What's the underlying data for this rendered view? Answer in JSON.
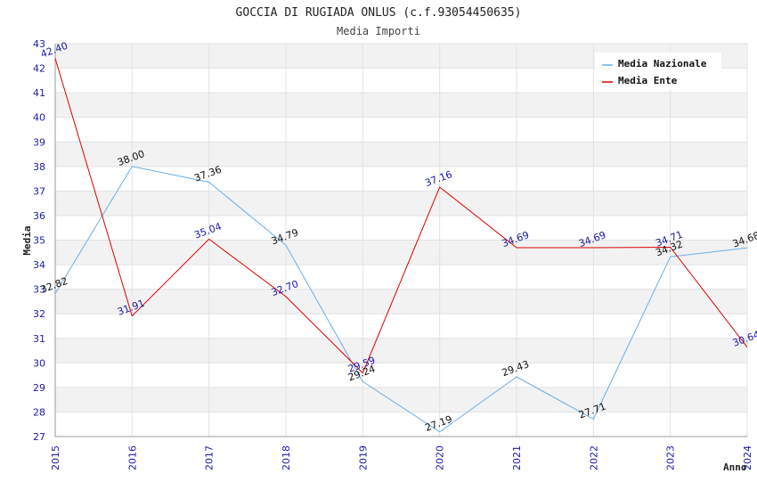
{
  "chart_data": {
    "type": "line",
    "title": "GOCCIA DI RUGIADA ONLUS (c.f.93054450635)",
    "subtitle": "Media Importi",
    "xlabel": "Anno",
    "ylabel": "Media",
    "categories": [
      "2015",
      "2016",
      "2017",
      "2018",
      "2019",
      "2020",
      "2021",
      "2022",
      "2023",
      "2024"
    ],
    "ylim": [
      27,
      43
    ],
    "yticks": [
      27,
      28,
      29,
      30,
      31,
      32,
      33,
      34,
      35,
      36,
      37,
      38,
      39,
      40,
      41,
      42,
      43
    ],
    "grid": true,
    "legend_position": "top-right",
    "series": [
      {
        "name": "Media Nazionale",
        "color": "#6aaee6",
        "values": [
          32.82,
          38.0,
          37.36,
          34.79,
          29.24,
          27.19,
          29.43,
          27.71,
          34.32,
          34.68
        ],
        "labels": [
          "32.82",
          "38.00",
          "37.36",
          "34.79",
          "29.24",
          "27.19",
          "29.43",
          "27.71",
          "34.32",
          "34.68"
        ]
      },
      {
        "name": "Media Ente",
        "color": "#dd0000",
        "values": [
          42.4,
          31.91,
          35.04,
          32.7,
          29.59,
          37.16,
          34.69,
          34.69,
          34.71,
          30.64
        ],
        "labels": [
          "42.40",
          "31.91",
          "35.04",
          "32.70",
          "29.59",
          "37.16",
          "34.69",
          "34.69",
          "34.71",
          "30.64"
        ]
      }
    ]
  }
}
